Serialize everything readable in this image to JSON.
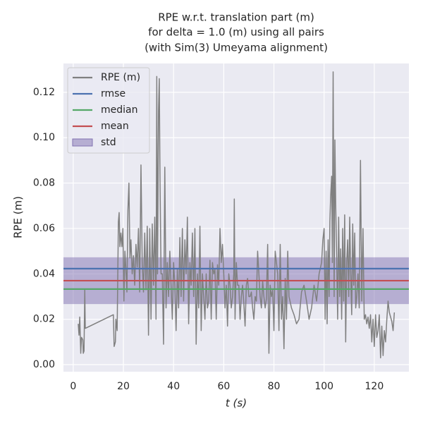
{
  "chart_data": {
    "type": "line",
    "title": [
      "RPE w.r.t. translation part (m)",
      "for delta = 1.0 (m) using all pairs",
      "(with Sim(3) Umeyama alignment)"
    ],
    "x_label": "t (s)",
    "y_label": "RPE (m)",
    "xlim": [
      -3.9,
      133.8
    ],
    "ylim": [
      -0.0031,
      0.1327
    ],
    "xticks": [
      0,
      20,
      40,
      60,
      80,
      100,
      120
    ],
    "yticks": [
      {
        "value": 0,
        "label": "0.00"
      },
      {
        "value": 0.02,
        "label": "0.02"
      },
      {
        "value": 0.04,
        "label": "0.04"
      },
      {
        "value": 0.06,
        "label": "0.06"
      },
      {
        "value": 0.08,
        "label": "0.08"
      },
      {
        "value": 0.1,
        "label": "0.10"
      },
      {
        "value": 0.12,
        "label": "0.12"
      }
    ],
    "grid": true,
    "legend": "upper left",
    "x": [
      2,
      2.3,
      2.6,
      3,
      3.3,
      3.8,
      4,
      4.3,
      4.6,
      4.8,
      16,
      16.3,
      16.8,
      17,
      17.5,
      18,
      18.3,
      18.6,
      19,
      19.4,
      19.8,
      20.2,
      20.6,
      21,
      21.4,
      21.8,
      22.2,
      22.6,
      23,
      23.5,
      24,
      24.5,
      25,
      25.5,
      26,
      26.5,
      27,
      27.5,
      28,
      28.5,
      29,
      29.5,
      30,
      30.5,
      31,
      31.5,
      32,
      32.5,
      33,
      33.3,
      33.6,
      34,
      34.3,
      34.6,
      35,
      35.5,
      36,
      36.5,
      37,
      37.5,
      38,
      38.5,
      39,
      39.5,
      40,
      40.5,
      41,
      41.5,
      42,
      42.5,
      43,
      43.5,
      44,
      44.5,
      45,
      45.5,
      46,
      46.5,
      47,
      47.5,
      48,
      48.5,
      49,
      49.5,
      50,
      50.5,
      51,
      51.5,
      52,
      52.5,
      53,
      53.5,
      54,
      54.5,
      55,
      55.5,
      56,
      56.5,
      57,
      57.5,
      58,
      58.5,
      59,
      59.5,
      60,
      60.5,
      61,
      61.5,
      62,
      62.5,
      63,
      63.5,
      64,
      64.2,
      64.5,
      65,
      65.5,
      66,
      66.5,
      67,
      67.5,
      68,
      68.5,
      69,
      69.5,
      70,
      70.5,
      71,
      71.5,
      72,
      72.5,
      73,
      73.5,
      74,
      74.5,
      75,
      75.5,
      76,
      76.5,
      77,
      77.5,
      78,
      78.5,
      79,
      79.5,
      80,
      80.5,
      81,
      81.5,
      82,
      82.5,
      83,
      83.5,
      84,
      84.5,
      85,
      85.5,
      86,
      87,
      88,
      89,
      90,
      91,
      92,
      93,
      94,
      95,
      96,
      97,
      98,
      99,
      99.5,
      100,
      100.4,
      100.8,
      101.2,
      101.6,
      102,
      102.3,
      102.6,
      103,
      103.3,
      103.6,
      104,
      104.3,
      104.6,
      105,
      105.4,
      105.8,
      106.2,
      106.6,
      107,
      107.4,
      107.8,
      108.2,
      108.6,
      109,
      109.4,
      109.8,
      110.2,
      110.6,
      111,
      111.4,
      111.8,
      112.2,
      112.6,
      113,
      113.5,
      114,
      114.5,
      115,
      115.5,
      116,
      116.5,
      117,
      117.5,
      118,
      118.5,
      119,
      119.5,
      120,
      120.5,
      121,
      121.5,
      122,
      122.5,
      123,
      123.5,
      124,
      124.5,
      125,
      125.5,
      126,
      127,
      127.5,
      128
    ],
    "series": [
      {
        "name": "RPE (m)",
        "color": "#808080",
        "values": [
          0.018,
          0.013,
          0.021,
          0.005,
          0.012,
          0.011,
          0.005,
          0.006,
          0.033,
          0.016,
          0.022,
          0.008,
          0.01,
          0.02,
          0.015,
          0.063,
          0.067,
          0.052,
          0.058,
          0.052,
          0.06,
          0.028,
          0.05,
          0.042,
          0.032,
          0.068,
          0.08,
          0.047,
          0.055,
          0.04,
          0.048,
          0.035,
          0.053,
          0.043,
          0.06,
          0.032,
          0.088,
          0.045,
          0.032,
          0.058,
          0.033,
          0.061,
          0.013,
          0.06,
          0.02,
          0.062,
          0.035,
          0.065,
          0.02,
          0.127,
          0.04,
          0.112,
          0.126,
          0.08,
          0.04,
          0.04,
          0.009,
          0.087,
          0.025,
          0.045,
          0.03,
          0.05,
          0.035,
          0.02,
          0.045,
          0.035,
          0.015,
          0.042,
          0.025,
          0.056,
          0.03,
          0.06,
          0.028,
          0.055,
          0.04,
          0.065,
          0.018,
          0.045,
          0.035,
          0.058,
          0.03,
          0.06,
          0.009,
          0.04,
          0.025,
          0.061,
          0.015,
          0.04,
          0.03,
          0.02,
          0.04,
          0.025,
          0.028,
          0.046,
          0.02,
          0.045,
          0.04,
          0.042,
          0.02,
          0.044,
          0.035,
          0.06,
          0.045,
          0.053,
          0.04,
          0.025,
          0.035,
          0.017,
          0.04,
          0.035,
          0.025,
          0.03,
          0.04,
          0.073,
          0.02,
          0.045,
          0.035,
          0.035,
          0.02,
          0.03,
          0.035,
          0.027,
          0.017,
          0.035,
          0.038,
          0.03,
          0.03,
          0.032,
          0.025,
          0.02,
          0.03,
          0.028,
          0.05,
          0.04,
          0.03,
          0.025,
          0.037,
          0.03,
          0.025,
          0.029,
          0.053,
          0.005,
          0.035,
          0.03,
          0.033,
          0.015,
          0.05,
          0.045,
          0.04,
          0.015,
          0.053,
          0.02,
          0.03,
          0.007,
          0.038,
          0.02,
          0.05,
          0.03,
          0.025,
          0.022,
          0.018,
          0.02,
          0.032,
          0.035,
          0.028,
          0.02,
          0.025,
          0.035,
          0.028,
          0.04,
          0.045,
          0.055,
          0.06,
          0.02,
          0.05,
          0.018,
          0.055,
          0.03,
          0.063,
          0.074,
          0.083,
          0.045,
          0.129,
          0.03,
          0.099,
          0.072,
          0.048,
          0.02,
          0.065,
          0.03,
          0.051,
          0.02,
          0.06,
          0.028,
          0.066,
          0.01,
          0.045,
          0.055,
          0.03,
          0.065,
          0.04,
          0.022,
          0.062,
          0.035,
          0.058,
          0.025,
          0.03,
          0.04,
          0.025,
          0.09,
          0.028,
          0.06,
          0.02,
          0.022,
          0.018,
          0.021,
          0.016,
          0.022,
          0.01,
          0.02,
          0.008,
          0.022,
          0.012,
          0.015,
          0.022,
          0.003,
          0.017,
          0.004,
          0.015,
          0.01,
          0.02,
          0.028,
          0.023,
          0.019,
          0.015,
          0.023
        ]
      }
    ],
    "hlines": [
      {
        "name": "rmse",
        "color": "#4c72b0",
        "value": 0.0423
      },
      {
        "name": "median",
        "color": "#55a868",
        "value": 0.0333
      },
      {
        "name": "mean",
        "color": "#c44e52",
        "value": 0.037
      }
    ],
    "band": {
      "name": "std",
      "color": "#8172b2",
      "value": 0.0103
    }
  }
}
